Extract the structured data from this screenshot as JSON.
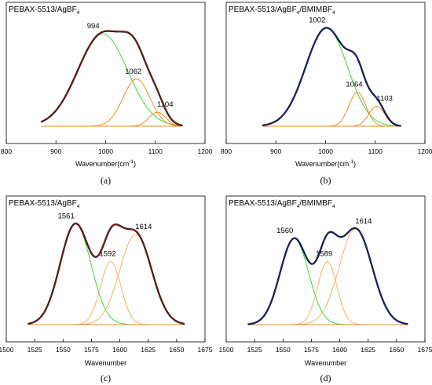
{
  "colors": {
    "fit_a": "#8b1a1a",
    "fit_b": "#1c2a8c",
    "deconvolution": "#33dd33",
    "peak": "#f08c1e",
    "peak_light": "#f5b25a"
  },
  "chart_data": [
    {
      "id": "a",
      "type": "line",
      "panel_label": "(a)",
      "title": {
        "main": "PEBAX-5513/AgBF",
        "sub": "4",
        "rest": ""
      },
      "xlabel": {
        "main": "Wavenumber(cm",
        "sup": "-1",
        "rest": ")"
      },
      "xlim": [
        800,
        1200
      ],
      "xticks": [
        800,
        900,
        1000,
        1100,
        1200
      ],
      "x_range": [
        870,
        1155
      ],
      "fit_color": "fit_a",
      "peaks": [
        {
          "center": 994,
          "height": 0.92,
          "width": 50,
          "color": "deconvolution",
          "label": "994"
        },
        {
          "center": 1062,
          "height": 0.47,
          "width": 27,
          "color": "peak",
          "label": "1062"
        },
        {
          "center": 1104,
          "height": 0.14,
          "width": 17,
          "color": "peak",
          "label": "1104"
        }
      ]
    },
    {
      "id": "b",
      "type": "line",
      "panel_label": "(b)",
      "title": {
        "main": "PEBAX-5513/AgBF",
        "sub": "4",
        "rest": "/BMIMBF",
        "sub2": "4"
      },
      "xlabel": {
        "main": "Wavenumber(cm",
        "sup": "-1",
        "rest": ")"
      },
      "xlim": [
        800,
        1200
      ],
      "xticks": [
        800,
        900,
        1000,
        1100,
        1200
      ],
      "x_range": [
        873,
        1152
      ],
      "fit_color": "fit_b",
      "peaks": [
        {
          "center": 1002,
          "height": 0.98,
          "width": 42,
          "color": "deconvolution",
          "label": "1002"
        },
        {
          "center": 1064,
          "height": 0.34,
          "width": 17,
          "color": "peak",
          "label": "1064"
        },
        {
          "center": 1103,
          "height": 0.2,
          "width": 16,
          "color": "peak",
          "label": "1103"
        }
      ]
    },
    {
      "id": "c",
      "type": "line",
      "panel_label": "(c)",
      "title": {
        "main": "PEBAX-5513/AgBF",
        "sub": "4",
        "rest": ""
      },
      "xlabel": {
        "main": "Wavenumber",
        "sup": "",
        "rest": ""
      },
      "xlim": [
        1500,
        1675
      ],
      "xticks": [
        1500,
        1525,
        1550,
        1575,
        1600,
        1625,
        1650,
        1675
      ],
      "x_range": [
        1519,
        1657
      ],
      "fit_color": "fit_a",
      "peaks": [
        {
          "center": 1561,
          "height": 0.96,
          "width": 13.5,
          "color": "deconvolution",
          "label": "1561"
        },
        {
          "center": 1592,
          "height": 0.6,
          "width": 9,
          "color": "peak_light",
          "label": "1592"
        },
        {
          "center": 1614,
          "height": 0.86,
          "width": 14,
          "color": "peak_light",
          "label": "1614"
        }
      ]
    },
    {
      "id": "d",
      "type": "line",
      "panel_label": "(d)",
      "title": {
        "main": "PEBAX-5513/AgBF",
        "sub": "4",
        "rest": "/BMIMBF",
        "sub2": "4"
      },
      "xlabel": {
        "main": "Wavenumber",
        "sup": "",
        "rest": ""
      },
      "xlim": [
        1500,
        1675
      ],
      "xticks": [
        1500,
        1525,
        1550,
        1575,
        1600,
        1625,
        1650,
        1675
      ],
      "x_range": [
        1519,
        1660
      ],
      "fit_color": "fit_b",
      "peaks": [
        {
          "center": 1560,
          "height": 0.82,
          "width": 12.5,
          "color": "deconvolution",
          "label": "1560"
        },
        {
          "center": 1589,
          "height": 0.6,
          "width": 8.5,
          "color": "peak_light",
          "label": "1589"
        },
        {
          "center": 1614,
          "height": 0.91,
          "width": 14.5,
          "color": "peak_light",
          "label": "1614"
        }
      ]
    }
  ]
}
